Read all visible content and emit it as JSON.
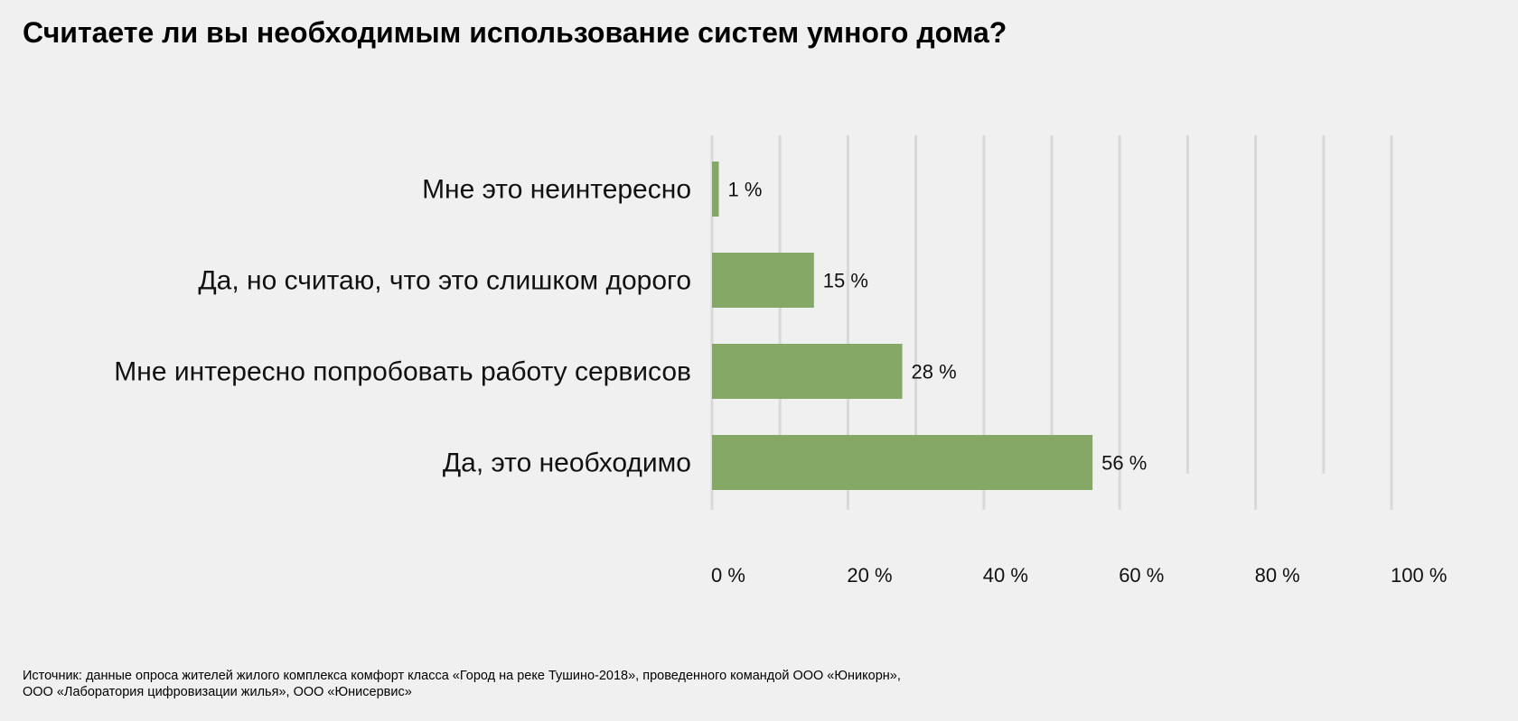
{
  "title": "Считаете ли вы необходимым использование систем умного дома?",
  "source": "Источник: данные опроса жителей жилого комплекса комфорт класса «Город на реке Тушино-2018», проведенного командой ООО «Юникорн», ООО «Лаборатория цифровизации жилья», ООО «Юнисервис»",
  "chart_data": {
    "type": "bar",
    "orientation": "horizontal",
    "categories": [
      "Мне это неинтересно",
      "Да, но считаю, что это слишком дорого",
      "Мне интересно попробовать работу сервисов",
      "Да, это необходимо"
    ],
    "values": [
      1,
      15,
      28,
      56
    ],
    "value_labels": [
      "1 %",
      "15 %",
      "28 %",
      "56 %"
    ],
    "xlim": [
      0,
      100
    ],
    "x_ticks": [
      0,
      20,
      40,
      60,
      80,
      100
    ],
    "x_tick_labels": [
      "0 %",
      "20 %",
      "40 %",
      "60 %",
      "80 %",
      "100 %"
    ],
    "xlabel": "",
    "ylabel": "",
    "grid": true,
    "bar_color": "#85a866",
    "grid_color": "#d9d9d9"
  }
}
